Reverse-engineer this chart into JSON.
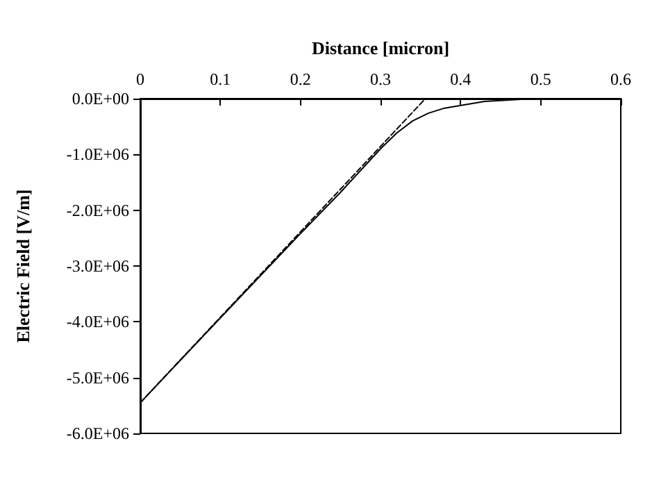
{
  "chart_data": {
    "type": "line",
    "xlabel": "Distance [micron]",
    "ylabel": "Electric Field [V/m]",
    "xlim": [
      0,
      0.6
    ],
    "xticks": [
      0,
      0.1,
      0.2,
      0.3,
      0.4,
      0.5,
      0.6
    ],
    "ylim": [
      -6000000,
      0
    ],
    "yticks": [
      {
        "value": -6000000,
        "label": "-6.0E+06"
      },
      {
        "value": -5000000,
        "label": "-5.0E+06"
      },
      {
        "value": -4000000,
        "label": "-4.0E+06"
      },
      {
        "value": -3000000,
        "label": "-3.0E+06"
      },
      {
        "value": -2000000,
        "label": "-2.0E+06"
      },
      {
        "value": -1000000,
        "label": "-1.0E+06"
      },
      {
        "value": 0,
        "label": "0.0E+00"
      }
    ],
    "grid": false,
    "marker": "none",
    "series": [
      {
        "color": "#000000",
        "line_style": "solid",
        "x": [
          0,
          0.1,
          0.2,
          0.25,
          0.3,
          0.32,
          0.34,
          0.36,
          0.38,
          0.43,
          0.48,
          0.52,
          0.6
        ],
        "values": [
          -5450000,
          -3930000,
          -2420000,
          -1680000,
          -900000,
          -620000,
          -400000,
          -260000,
          -170000,
          -50000,
          -10000,
          0,
          0
        ]
      },
      {
        "color": "#000000",
        "line_style": "dashed",
        "x": [
          0,
          0.356
        ],
        "values": [
          -5450000,
          0
        ]
      }
    ]
  }
}
